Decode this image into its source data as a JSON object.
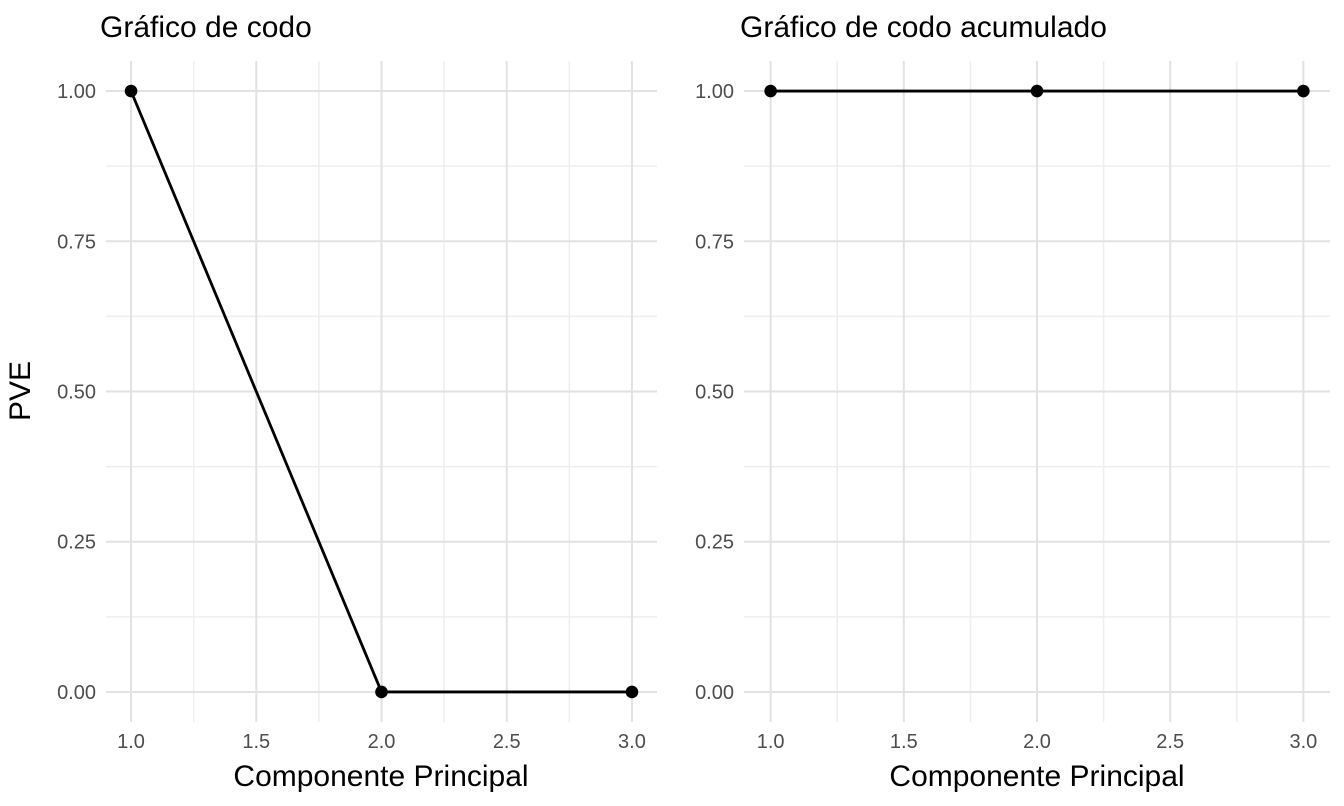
{
  "page": {
    "background": "#ffffff"
  },
  "colors": {
    "grid_major": "#e2e2e2",
    "grid_minor": "#eeeeee",
    "axis_text": "#4d4d4d",
    "title_text": "#000000",
    "data": "#000000",
    "background": "#ffffff"
  },
  "chart_data": [
    {
      "type": "line",
      "title": "Gráfico de codo",
      "xlabel": "Componente Principal",
      "ylabel": "PVE",
      "x": [
        1,
        2,
        3
      ],
      "y": [
        1.0,
        0.0,
        0.0
      ],
      "points": [
        {
          "componente": 1,
          "pve": 1.0
        },
        {
          "componente": 2,
          "pve": 0.0
        },
        {
          "componente": 3,
          "pve": 0.0
        }
      ],
      "x_ticks": [
        1.0,
        1.5,
        2.0,
        2.5,
        3.0
      ],
      "x_tick_labels": [
        "1.0",
        "1.5",
        "2.0",
        "2.5",
        "3.0"
      ],
      "y_ticks": [
        0.0,
        0.25,
        0.5,
        0.75,
        1.0
      ],
      "y_tick_labels": [
        "0.00",
        "0.25",
        "0.50",
        "0.75",
        "1.00"
      ],
      "xlim": [
        0.9,
        3.1
      ],
      "ylim": [
        -0.05,
        1.05
      ],
      "grid": {
        "major": true,
        "minor": true
      },
      "legend": "none",
      "line_color": "#000000",
      "point_color": "#000000"
    },
    {
      "type": "line",
      "title": "Gráfico de codo acumulado",
      "xlabel": "Componente Principal",
      "ylabel": "",
      "x": [
        1,
        2,
        3
      ],
      "y": [
        1.0,
        1.0,
        1.0
      ],
      "points": [
        {
          "componente": 1,
          "pve_acumulado": 1.0
        },
        {
          "componente": 2,
          "pve_acumulado": 1.0
        },
        {
          "componente": 3,
          "pve_acumulado": 1.0
        }
      ],
      "x_ticks": [
        1.0,
        1.5,
        2.0,
        2.5,
        3.0
      ],
      "x_tick_labels": [
        "1.0",
        "1.5",
        "2.0",
        "2.5",
        "3.0"
      ],
      "y_ticks": [
        0.0,
        0.25,
        0.5,
        0.75,
        1.0
      ],
      "y_tick_labels": [
        "0.00",
        "0.25",
        "0.50",
        "0.75",
        "1.00"
      ],
      "xlim": [
        0.9,
        3.1
      ],
      "ylim": [
        -0.05,
        1.05
      ],
      "grid": {
        "major": true,
        "minor": true
      },
      "legend": "none",
      "line_color": "#000000",
      "point_color": "#000000"
    }
  ]
}
